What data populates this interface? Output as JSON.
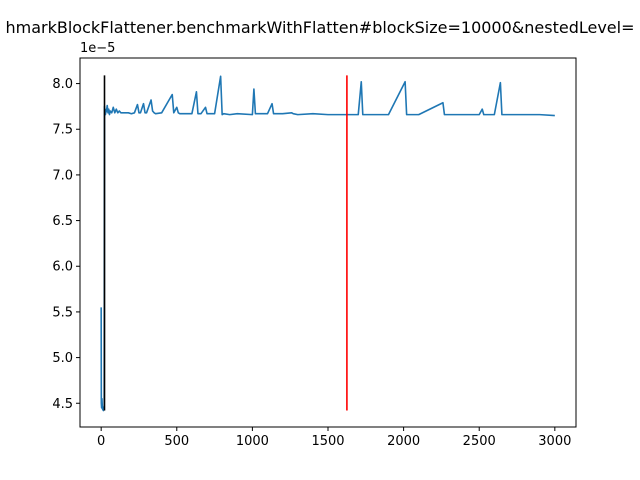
{
  "chart_data": {
    "type": "line",
    "title": "hmarkBlockFlattener.benchmarkWithFlatten#blockSize=10000&nestedLevel=",
    "xlabel": "",
    "ylabel": "",
    "y_offset_label": "1e−5",
    "xlim": [
      -140,
      3140
    ],
    "ylim": [
      4.24,
      8.28
    ],
    "x_ticks": [
      0,
      500,
      1000,
      1500,
      2000,
      2500,
      3000
    ],
    "x_tick_labels": [
      "0",
      "500",
      "1000",
      "1500",
      "2000",
      "2500",
      "3000"
    ],
    "y_ticks": [
      4.5,
      5.0,
      5.5,
      6.0,
      6.5,
      7.0,
      7.5,
      8.0
    ],
    "y_tick_labels": [
      "4.5",
      "5.0",
      "5.5",
      "6.0",
      "6.5",
      "7.0",
      "7.5",
      "8.0"
    ],
    "grid": false,
    "series": [
      {
        "color": "#1f77b4",
        "x": [
          0,
          1,
          3,
          5,
          8,
          10,
          12,
          15,
          18,
          20,
          22,
          24,
          26,
          28,
          30,
          35,
          40,
          45,
          50,
          55,
          60,
          70,
          80,
          90,
          100,
          110,
          120,
          130,
          150,
          180,
          200,
          220,
          240,
          250,
          260,
          280,
          290,
          300,
          330,
          340,
          350,
          360,
          400,
          470,
          480,
          500,
          510,
          520,
          600,
          630,
          640,
          660,
          690,
          700,
          710,
          750,
          790,
          800,
          810,
          850,
          900,
          1000,
          1010,
          1020,
          1100,
          1130,
          1140,
          1200,
          1260,
          1270,
          1300,
          1400,
          1500,
          1600,
          1700,
          1720,
          1730,
          1800,
          1900,
          2010,
          2020,
          2100,
          2260,
          2270,
          2300,
          2500,
          2520,
          2530,
          2600,
          2640,
          2650,
          2700,
          2800,
          2900,
          3000
        ],
        "y": [
          5.55,
          4.5,
          4.45,
          4.55,
          4.45,
          4.43,
          4.44,
          4.42,
          4.46,
          4.43,
          7.75,
          7.68,
          7.72,
          7.66,
          7.68,
          7.7,
          7.76,
          7.68,
          7.72,
          7.66,
          7.7,
          7.68,
          7.74,
          7.68,
          7.72,
          7.68,
          7.7,
          7.68,
          7.68,
          7.68,
          7.67,
          7.68,
          7.77,
          7.68,
          7.68,
          7.78,
          7.68,
          7.68,
          7.82,
          7.7,
          7.68,
          7.67,
          7.68,
          7.88,
          7.68,
          7.74,
          7.68,
          7.67,
          7.67,
          7.91,
          7.67,
          7.67,
          7.74,
          7.67,
          7.67,
          7.67,
          8.08,
          7.66,
          7.67,
          7.66,
          7.67,
          7.66,
          7.94,
          7.67,
          7.67,
          7.78,
          7.67,
          7.67,
          7.68,
          7.67,
          7.66,
          7.67,
          7.66,
          7.66,
          7.66,
          8.02,
          7.66,
          7.66,
          7.66,
          8.02,
          7.66,
          7.66,
          7.79,
          7.66,
          7.66,
          7.66,
          7.72,
          7.66,
          7.66,
          8.01,
          7.66,
          7.66,
          7.66,
          7.66,
          7.65
        ]
      }
    ],
    "vlines": [
      {
        "x": 22,
        "ymin": 4.42,
        "ymax": 8.09,
        "color": "#000000"
      },
      {
        "x": 1625,
        "ymin": 4.42,
        "ymax": 8.09,
        "color": "#ff0000"
      }
    ]
  }
}
